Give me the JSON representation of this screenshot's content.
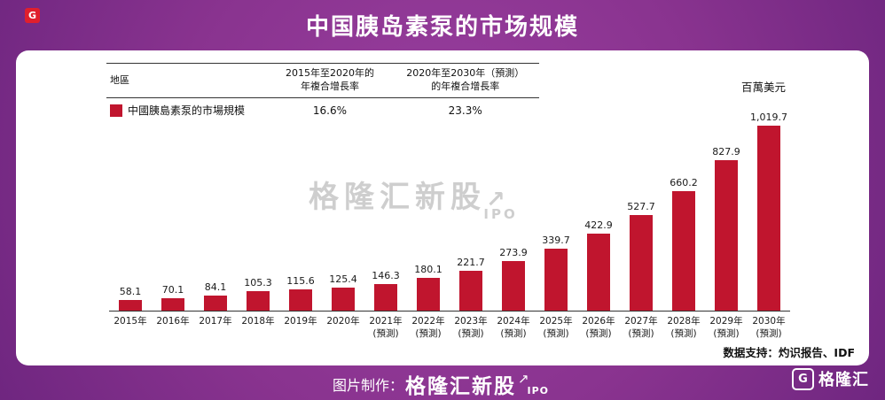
{
  "header": {
    "title": "中国胰岛素泵的市场规模",
    "corner_glyph": "G"
  },
  "chart_data": {
    "type": "bar",
    "title": "中国胰岛素泵的市场规模",
    "unit_label": "百萬美元",
    "grid": false,
    "legend_position": "top-left",
    "bar_color": "#c0152e",
    "ylim": [
      0,
      1020
    ],
    "table": {
      "region_header": "地區",
      "col1_header_line1": "2015年至2020年的",
      "col1_header_line2": "年複合增長率",
      "col2_header_line1": "2020年至2030年（預測）",
      "col2_header_line2": "的年複合增長率",
      "series_label": "中國胰島素泵的市場規模",
      "col1_value": "16.6%",
      "col2_value": "23.3%"
    },
    "categories": [
      {
        "year": "2015年",
        "note": ""
      },
      {
        "year": "2016年",
        "note": ""
      },
      {
        "year": "2017年",
        "note": ""
      },
      {
        "year": "2018年",
        "note": ""
      },
      {
        "year": "2019年",
        "note": ""
      },
      {
        "year": "2020年",
        "note": ""
      },
      {
        "year": "2021年",
        "note": "(預測)"
      },
      {
        "year": "2022年",
        "note": "(預測)"
      },
      {
        "year": "2023年",
        "note": "(預測)"
      },
      {
        "year": "2024年",
        "note": "(預測)"
      },
      {
        "year": "2025年",
        "note": "(預測)"
      },
      {
        "year": "2026年",
        "note": "(預測)"
      },
      {
        "year": "2027年",
        "note": "(預測)"
      },
      {
        "year": "2028年",
        "note": "(預測)"
      },
      {
        "year": "2029年",
        "note": "(預測)"
      },
      {
        "year": "2030年",
        "note": "(預測)"
      }
    ],
    "values": [
      58.1,
      70.1,
      84.1,
      105.3,
      115.6,
      125.4,
      146.3,
      180.1,
      221.7,
      273.9,
      339.7,
      422.9,
      527.7,
      660.2,
      827.9,
      1019.7
    ],
    "labels": [
      "58.1",
      "70.1",
      "84.1",
      "105.3",
      "115.6",
      "125.4",
      "146.3",
      "180.1",
      "221.7",
      "273.9",
      "339.7",
      "422.9",
      "527.7",
      "660.2",
      "827.9",
      "1,019.7"
    ],
    "watermark": {
      "text": "格隆汇新股",
      "arrow": "↗",
      "sub": "IPO"
    },
    "source": "数据支持：灼识报告、IDF"
  },
  "footer": {
    "made_by_label": "图片制作：",
    "brand": "格隆汇新股",
    "brand_arrow": "↗",
    "brand_sub": "IPO",
    "logo_glyph": "G",
    "logo_text": "格隆汇"
  }
}
